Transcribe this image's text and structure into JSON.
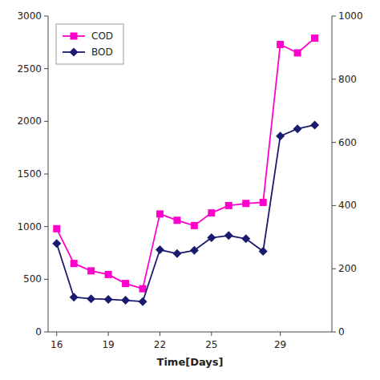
{
  "chart_data": {
    "type": "line",
    "xlabel": "Time[Days]",
    "x": [
      16,
      17,
      18,
      19,
      20,
      21,
      22,
      23,
      24,
      25,
      26,
      27,
      28,
      29,
      30,
      31
    ],
    "series": [
      {
        "name": "COD",
        "color": "#FF00CC",
        "marker": "square",
        "values": [
          980,
          650,
          580,
          545,
          460,
          410,
          1120,
          1060,
          1010,
          1130,
          1200,
          1220,
          1230,
          2730,
          2650,
          2790
        ]
      },
      {
        "name": "BOD",
        "color": "#1a1a6e",
        "marker": "diamond",
        "axis": "y2",
        "values": [
          280,
          110,
          105,
          103,
          100,
          96,
          260,
          248,
          258,
          298,
          305,
          295,
          255,
          620,
          643,
          655
        ]
      }
    ],
    "xlim": [
      15.5,
      32.0
    ],
    "xticks": [
      16,
      19,
      22,
      25,
      29
    ],
    "ylim": [
      0,
      3000
    ],
    "yticks": [
      0,
      500,
      1000,
      1500,
      2000,
      2500,
      3000
    ],
    "y2lim": [
      0,
      1000
    ],
    "y2ticks": [
      0,
      200,
      400,
      600,
      800,
      1000
    ],
    "legend": "upper left",
    "grid": false
  }
}
